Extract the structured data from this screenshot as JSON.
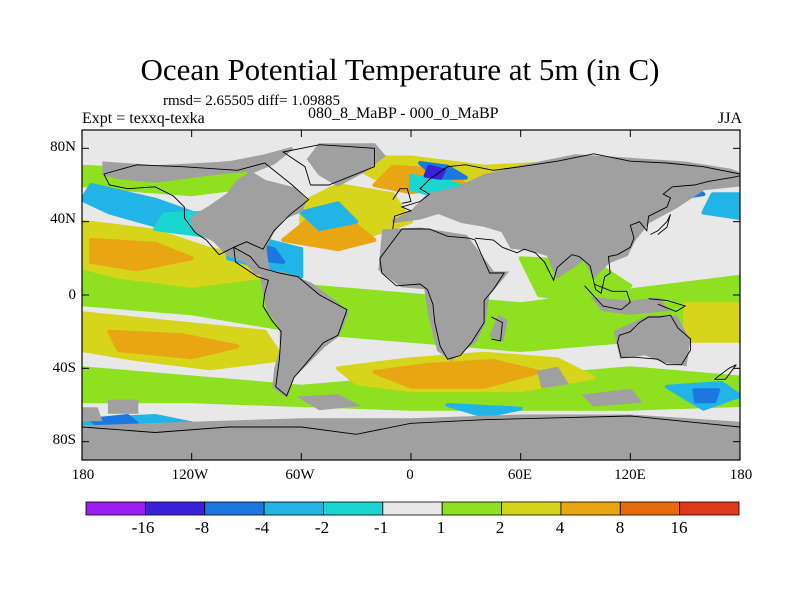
{
  "title": "Ocean Potential Temperature at 5m (in C)",
  "stats": "rmsd= 2.65505 diff= 1.09885",
  "expt": "Expt = texxq-texka",
  "period": "080_8_MaBP - 000_0_MaBP",
  "season": "JJA",
  "lat_labels": [
    "80N",
    "40N",
    "0",
    "40S",
    "80S"
  ],
  "lat_values": [
    80,
    40,
    0,
    -40,
    -80
  ],
  "lon_labels": [
    "180",
    "120W",
    "60W",
    "0",
    "60E",
    "120E",
    "180"
  ],
  "lon_values": [
    -180,
    -120,
    -60,
    0,
    60,
    120,
    180
  ],
  "colorbar": {
    "levels": [
      "-16",
      "-8",
      "-4",
      "-2",
      "-1",
      "1",
      "2",
      "4",
      "8",
      "16"
    ],
    "colors": [
      "#9b1ff0",
      "#3a22d9",
      "#1a78e0",
      "#22b4e6",
      "#1ad6d0",
      "#e8e8e8",
      "#8ee020",
      "#d7d41c",
      "#e8a612",
      "#e86a0e",
      "#e0381a"
    ]
  },
  "land_color": "#a0a0a0",
  "no_change_color": "#e8e8e8"
}
